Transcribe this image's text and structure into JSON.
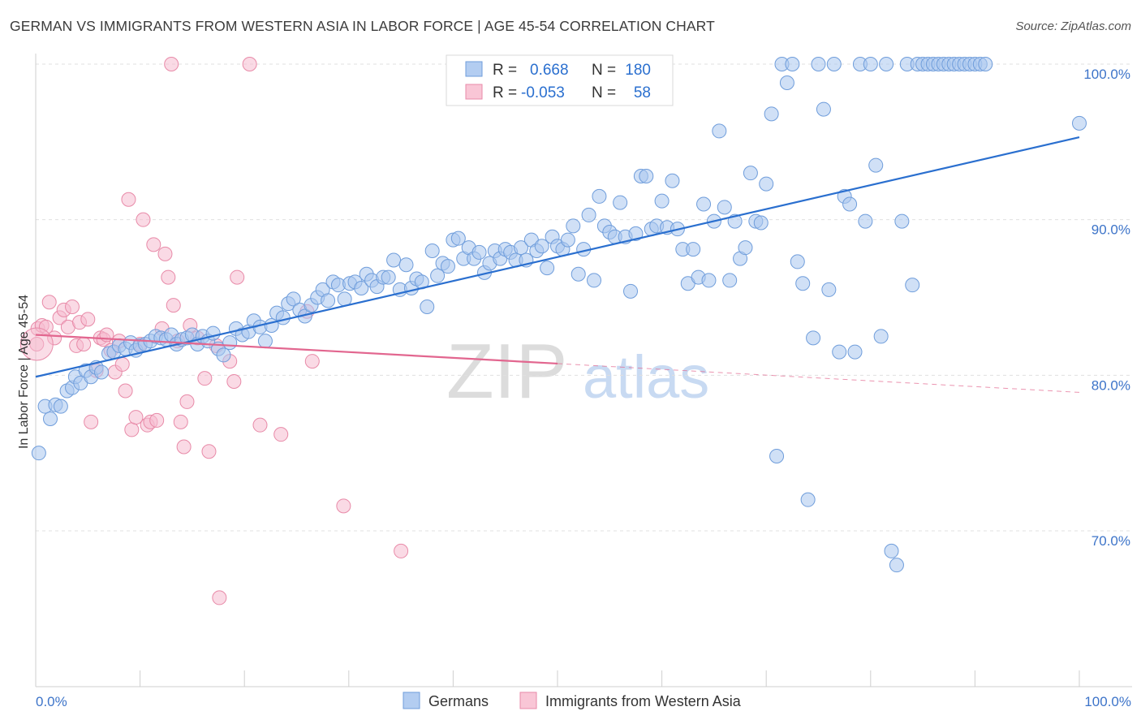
{
  "header": {
    "title": "GERMAN VS IMMIGRANTS FROM WESTERN ASIA IN LABOR FORCE | AGE 45-54 CORRELATION CHART",
    "source": "Source: ZipAtlas.com"
  },
  "watermark": {
    "zip": "ZIP",
    "atlas": "atlas"
  },
  "colors": {
    "blue_fill": "#a9c6ef",
    "blue_stroke": "#6f9ddb",
    "blue_line": "#2a6fcf",
    "pink_fill": "#f6bcd0",
    "pink_stroke": "#e88aa8",
    "pink_line": "#e2668f",
    "axis_text": "#3d74c9",
    "grid": "#e0e0e0"
  },
  "legend": {
    "rows": [
      {
        "r_label": "R =",
        "r_value": "0.668",
        "n_label": "N =",
        "n_value": "180"
      },
      {
        "r_label": "R =",
        "r_value": "-0.053",
        "n_label": "N =",
        "n_value": "58"
      }
    ]
  },
  "chart_data": {
    "type": "scatter",
    "title": "GERMAN VS IMMIGRANTS FROM WESTERN ASIA IN LABOR FORCE | AGE 45-54 CORRELATION CHART",
    "xlabel": "",
    "ylabel": "In Labor Force | Age 45-54",
    "xlim": [
      0,
      100
    ],
    "ylim": [
      60.5,
      101.5
    ],
    "x_tick_labels": [
      "0.0%",
      "100.0%"
    ],
    "y_ticks": [
      70,
      80,
      90,
      100
    ],
    "y_tick_labels": [
      "70.0%",
      "80.0%",
      "90.0%",
      "100.0%"
    ],
    "grid": true,
    "legend_position": "top-center",
    "series": [
      {
        "name": "Germans",
        "color": "#a9c6ef",
        "regression": {
          "x": [
            0,
            100
          ],
          "y": [
            79.9,
            95.3
          ],
          "dashed_from": null
        },
        "points": [
          [
            0.3,
            75
          ],
          [
            0.9,
            78
          ],
          [
            1.4,
            77.2
          ],
          [
            1.9,
            78.1
          ],
          [
            2.4,
            78
          ],
          [
            3,
            79
          ],
          [
            3.5,
            79.2
          ],
          [
            3.8,
            79.9
          ],
          [
            4.3,
            79.5
          ],
          [
            4.8,
            80.3
          ],
          [
            5.3,
            79.9
          ],
          [
            5.8,
            80.5
          ],
          [
            6.3,
            80.2
          ],
          [
            7,
            81.4
          ],
          [
            7.5,
            81.5
          ],
          [
            8,
            81.9
          ],
          [
            8.6,
            81.7
          ],
          [
            9.1,
            82.1
          ],
          [
            9.6,
            81.6
          ],
          [
            10,
            81.9
          ],
          [
            10.5,
            82
          ],
          [
            11,
            82.2
          ],
          [
            11.5,
            82.5
          ],
          [
            12,
            82.4
          ],
          [
            12.5,
            82.3
          ],
          [
            13,
            82.6
          ],
          [
            13.5,
            82
          ],
          [
            14,
            82.3
          ],
          [
            14.5,
            82.4
          ],
          [
            15,
            82.6
          ],
          [
            15.5,
            82
          ],
          [
            16,
            82.5
          ],
          [
            16.5,
            82.2
          ],
          [
            17,
            82.7
          ],
          [
            17.5,
            81.7
          ],
          [
            18,
            81.3
          ],
          [
            18.6,
            82.1
          ],
          [
            19.2,
            83
          ],
          [
            19.8,
            82.6
          ],
          [
            20.4,
            82.8
          ],
          [
            20.9,
            83.5
          ],
          [
            21.5,
            83.1
          ],
          [
            22,
            82.2
          ],
          [
            22.6,
            83.2
          ],
          [
            23.1,
            84
          ],
          [
            23.7,
            83.7
          ],
          [
            24.2,
            84.6
          ],
          [
            24.7,
            84.9
          ],
          [
            25.3,
            84.2
          ],
          [
            25.8,
            83.8
          ],
          [
            26.4,
            84.5
          ],
          [
            27,
            85
          ],
          [
            27.5,
            85.5
          ],
          [
            28,
            84.8
          ],
          [
            28.5,
            86
          ],
          [
            29,
            85.8
          ],
          [
            29.6,
            84.9
          ],
          [
            30.1,
            85.9
          ],
          [
            30.6,
            86
          ],
          [
            31.2,
            85.6
          ],
          [
            31.7,
            86.5
          ],
          [
            32.2,
            86.1
          ],
          [
            32.7,
            85.7
          ],
          [
            33.3,
            86.3
          ],
          [
            33.8,
            86.3
          ],
          [
            34.3,
            87.4
          ],
          [
            34.9,
            85.5
          ],
          [
            35.5,
            87.1
          ],
          [
            36,
            85.6
          ],
          [
            36.5,
            86.2
          ],
          [
            37,
            86
          ],
          [
            37.5,
            84.4
          ],
          [
            38,
            88
          ],
          [
            38.5,
            86.4
          ],
          [
            39,
            87.2
          ],
          [
            39.5,
            87
          ],
          [
            40,
            88.7
          ],
          [
            40.5,
            88.8
          ],
          [
            41,
            87.5
          ],
          [
            41.5,
            88.2
          ],
          [
            42,
            87.5
          ],
          [
            42.5,
            87.9
          ],
          [
            43,
            86.6
          ],
          [
            43.5,
            87.2
          ],
          [
            44,
            88
          ],
          [
            44.5,
            87.5
          ],
          [
            45,
            88.1
          ],
          [
            45.5,
            87.9
          ],
          [
            46,
            87.4
          ],
          [
            46.5,
            88.2
          ],
          [
            47,
            87.4
          ],
          [
            47.5,
            88.7
          ],
          [
            48,
            88
          ],
          [
            48.5,
            88.3
          ],
          [
            49,
            86.9
          ],
          [
            49.5,
            88.9
          ],
          [
            50,
            88.3
          ],
          [
            50.5,
            88.1
          ],
          [
            51,
            88.7
          ],
          [
            51.5,
            89.6
          ],
          [
            52,
            86.5
          ],
          [
            52.5,
            88.1
          ],
          [
            53,
            90.3
          ],
          [
            53.5,
            86.1
          ],
          [
            54,
            91.5
          ],
          [
            54.5,
            89.6
          ],
          [
            55,
            89.2
          ],
          [
            55.5,
            88.9
          ],
          [
            56,
            91.1
          ],
          [
            56.5,
            88.9
          ],
          [
            57,
            85.4
          ],
          [
            57.5,
            89.1
          ],
          [
            58,
            92.8
          ],
          [
            58.5,
            92.8
          ],
          [
            59,
            89.4
          ],
          [
            59.5,
            89.6
          ],
          [
            60,
            91.2
          ],
          [
            60.5,
            89.5
          ],
          [
            61,
            92.5
          ],
          [
            61.5,
            89.4
          ],
          [
            62,
            88.1
          ],
          [
            62.5,
            85.9
          ],
          [
            63,
            88.1
          ],
          [
            63.5,
            86.3
          ],
          [
            64,
            91
          ],
          [
            64.5,
            86.1
          ],
          [
            65,
            89.9
          ],
          [
            65.5,
            95.7
          ],
          [
            66,
            90.8
          ],
          [
            66.5,
            86.1
          ],
          [
            67,
            89.9
          ],
          [
            67.5,
            87.5
          ],
          [
            68,
            88.2
          ],
          [
            68.5,
            93
          ],
          [
            69,
            89.9
          ],
          [
            69.5,
            89.8
          ],
          [
            70,
            92.3
          ],
          [
            70.5,
            96.8
          ],
          [
            71,
            74.8
          ],
          [
            71.5,
            100
          ],
          [
            72,
            98.8
          ],
          [
            72.5,
            100
          ],
          [
            73,
            87.3
          ],
          [
            73.5,
            85.9
          ],
          [
            74,
            72
          ],
          [
            74.5,
            82.4
          ],
          [
            75,
            100
          ],
          [
            75.5,
            97.1
          ],
          [
            76,
            85.5
          ],
          [
            76.5,
            100
          ],
          [
            77,
            81.5
          ],
          [
            77.5,
            91.5
          ],
          [
            78,
            91
          ],
          [
            78.5,
            81.5
          ],
          [
            79,
            100
          ],
          [
            79.5,
            89.9
          ],
          [
            80,
            100
          ],
          [
            80.5,
            93.5
          ],
          [
            81,
            82.5
          ],
          [
            81.5,
            100
          ],
          [
            82,
            68.7
          ],
          [
            82.5,
            67.8
          ],
          [
            83,
            89.9
          ],
          [
            83.5,
            100
          ],
          [
            84,
            85.8
          ],
          [
            84.5,
            100
          ],
          [
            85,
            100
          ],
          [
            85.5,
            100
          ],
          [
            86,
            100
          ],
          [
            86.5,
            100
          ],
          [
            87,
            100
          ],
          [
            87.5,
            100
          ],
          [
            88,
            100
          ],
          [
            88.5,
            100
          ],
          [
            89,
            100
          ],
          [
            89.5,
            100
          ],
          [
            90,
            100
          ],
          [
            90.5,
            100
          ],
          [
            91,
            100
          ],
          [
            100,
            96.2
          ]
        ]
      },
      {
        "name": "Immigrants from Western Asia",
        "color": "#f6bcd0",
        "regression": {
          "x": [
            0,
            100
          ],
          "y": [
            82.6,
            78.9
          ],
          "dashed_from": 50
        },
        "points": [
          [
            0.2,
            83
          ],
          [
            0.6,
            83.2
          ],
          [
            1,
            83.1
          ],
          [
            1.3,
            84.7
          ],
          [
            1.8,
            82.4
          ],
          [
            2.3,
            83.7
          ],
          [
            2.7,
            84.2
          ],
          [
            3.1,
            83.1
          ],
          [
            3.5,
            84.4
          ],
          [
            3.9,
            81.9
          ],
          [
            4.2,
            83.4
          ],
          [
            4.6,
            82
          ],
          [
            5,
            83.6
          ],
          [
            5.3,
            77
          ],
          [
            5.8,
            80.3
          ],
          [
            6.2,
            82.4
          ],
          [
            6.5,
            82.3
          ],
          [
            6.8,
            82.6
          ],
          [
            7.2,
            81.6
          ],
          [
            7.6,
            80.2
          ],
          [
            8,
            82.2
          ],
          [
            8.3,
            80.7
          ],
          [
            8.6,
            79
          ],
          [
            8.9,
            91.3
          ],
          [
            9.2,
            76.5
          ],
          [
            9.6,
            77.3
          ],
          [
            10,
            82
          ],
          [
            10.3,
            90
          ],
          [
            10.7,
            76.8
          ],
          [
            11,
            77
          ],
          [
            11.3,
            88.4
          ],
          [
            11.6,
            77.1
          ],
          [
            12.1,
            83
          ],
          [
            12.4,
            87.8
          ],
          [
            12.7,
            86.3
          ],
          [
            13,
            100
          ],
          [
            13.2,
            84.5
          ],
          [
            13.6,
            82.2
          ],
          [
            13.9,
            77
          ],
          [
            14.2,
            75.4
          ],
          [
            14.5,
            78.3
          ],
          [
            14.8,
            83.2
          ],
          [
            15.5,
            82.4
          ],
          [
            16.2,
            79.8
          ],
          [
            16.6,
            75.1
          ],
          [
            17.3,
            81.9
          ],
          [
            17.6,
            65.7
          ],
          [
            18.6,
            80.9
          ],
          [
            19,
            79.6
          ],
          [
            19.3,
            86.3
          ],
          [
            20.5,
            100
          ],
          [
            21.5,
            76.8
          ],
          [
            23.5,
            76.2
          ],
          [
            26,
            84.1
          ],
          [
            26.5,
            80.9
          ],
          [
            29.5,
            71.6
          ],
          [
            35,
            68.7
          ],
          [
            0.1,
            82
          ]
        ]
      }
    ]
  },
  "bottom_legend": {
    "items": [
      "Germans",
      "Immigrants from Western Asia"
    ]
  }
}
